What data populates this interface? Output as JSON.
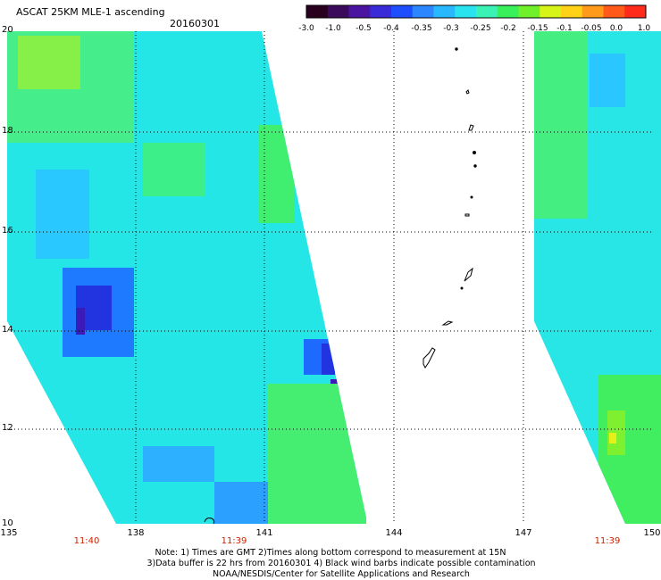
{
  "header": {
    "title": "ASCAT 25KM MLE-1 ascending",
    "date": "20160301"
  },
  "colorbar": {
    "ticks": [
      "-3.0",
      "-1.0",
      "-0.5",
      "-0.4",
      "-0.35",
      "-0.3",
      "-0.25",
      "-0.2",
      "-0.15",
      "-0.1",
      "-0.05",
      "0.0",
      "1.0"
    ],
    "colors": [
      "#2a001f",
      "#3b0a5a",
      "#4b14a0",
      "#3a2bd8",
      "#1e4fff",
      "#2c87ff",
      "#28b8ff",
      "#29e4ef",
      "#39f2b4",
      "#39ef5a",
      "#6ff02a",
      "#d7f418",
      "#ffd218",
      "#ff9a1a",
      "#ff5a1a",
      "#ff2a1a"
    ]
  },
  "map": {
    "lat_labels": [
      "20",
      "18",
      "16",
      "14",
      "12",
      "10"
    ],
    "lon_labels": [
      "135",
      "138",
      "141",
      "144",
      "147",
      "150"
    ],
    "time_labels": [
      "11:40",
      "11:39",
      "11:39"
    ]
  },
  "footer": {
    "line1": "Note: 1) Times are GMT 2)Times along bottom correspond to measurement at 15N",
    "line2": "3)Data buffer is 22 hrs from 20160301 4) Black wind barbs indicate possible contamination",
    "line3": "NOAA/NESDIS/Center for Satellite Applications and Research"
  }
}
